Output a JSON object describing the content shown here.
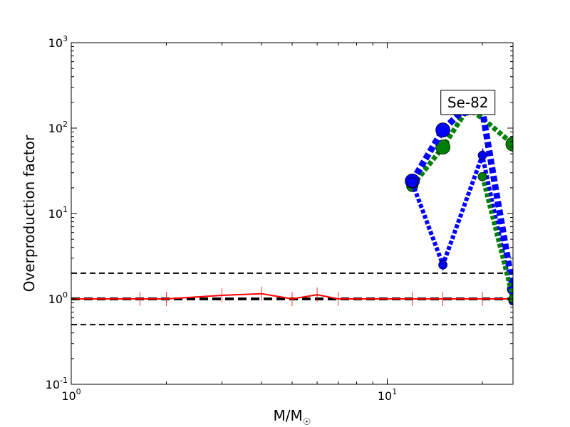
{
  "chart_data": {
    "type": "line",
    "title": "",
    "xlabel": "M/M",
    "xlabel_sub": "☉",
    "ylabel": "Overproduction factor",
    "xscale": "log",
    "yscale": "log",
    "xlim": [
      1,
      25
    ],
    "ylim": [
      0.1,
      1000
    ],
    "grid": false,
    "x_ticks": [
      {
        "value": 1,
        "base": "10",
        "exp": "0"
      },
      {
        "value": 10,
        "base": "10",
        "exp": "1"
      }
    ],
    "y_ticks": [
      {
        "value": 0.1,
        "base": "10",
        "exp": "-1"
      },
      {
        "value": 1,
        "base": "10",
        "exp": "0"
      },
      {
        "value": 10,
        "base": "10",
        "exp": "1"
      },
      {
        "value": 100,
        "base": "10",
        "exp": "2"
      },
      {
        "value": 1000,
        "base": "10",
        "exp": "3"
      }
    ],
    "annotation": {
      "text": "Se-82",
      "x": 18,
      "y": 200
    },
    "reference_lines": [
      {
        "y": 2.0,
        "style": "dashed",
        "color": "#000000",
        "width": 2
      },
      {
        "y": 1.0,
        "style": "dashed",
        "color": "#000000",
        "width": 4
      },
      {
        "y": 0.5,
        "style": "dashed",
        "color": "#000000",
        "width": 2
      }
    ],
    "series": [
      {
        "color": "#ff0000",
        "marker": "vline",
        "line": "solid",
        "width": 2,
        "x": [
          1,
          1.65,
          2,
          3,
          4,
          5,
          6,
          7,
          12,
          15,
          20,
          25
        ],
        "y": [
          1.0,
          1.0,
          1.0,
          1.1,
          1.15,
          1.0,
          1.12,
          1.0,
          1.0,
          1.0,
          1.0,
          1.0
        ]
      },
      {
        "color": "#008000",
        "marker": "circle",
        "line": "dotted",
        "width": 7,
        "x": [
          12,
          15,
          18,
          20,
          25
        ],
        "y": [
          21,
          60,
          170,
          130,
          65
        ],
        "sizes": [
          8,
          10,
          0,
          0,
          10
        ]
      },
      {
        "color": "#0000ff",
        "marker": "circle",
        "line": "dotted",
        "width": 9,
        "x": [
          12,
          15,
          17,
          20,
          22,
          25
        ],
        "y": [
          24,
          95,
          150,
          160,
          20,
          1.3
        ],
        "sizes": [
          10,
          10,
          0,
          0,
          0,
          8
        ]
      },
      {
        "color": "#0000ff",
        "marker": "circle",
        "line": "dotted",
        "width": 6,
        "x": [
          12,
          15,
          20,
          25
        ],
        "y": [
          23,
          2.5,
          48,
          0.95
        ],
        "sizes": [
          7,
          6,
          6,
          6
        ]
      },
      {
        "color": "#008000",
        "marker": "circle",
        "line": "dotted",
        "width": 6,
        "x": [
          20,
          25
        ],
        "y": [
          27,
          1.0
        ],
        "sizes": [
          6,
          6
        ]
      }
    ]
  }
}
